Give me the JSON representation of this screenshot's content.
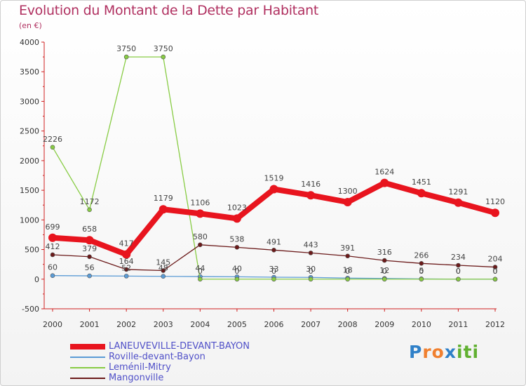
{
  "title": "Evolution du Montant de la Dette par Habitant",
  "unit": "(en €)",
  "logo": {
    "text": "Proxiti",
    "colors": [
      "#2f80c8",
      "#f08030",
      "#f08030",
      "#2f80c8",
      "#60b030",
      "#60b030",
      "#60b030"
    ]
  },
  "chart_data": {
    "type": "line",
    "x": [
      2000,
      2001,
      2002,
      2003,
      2004,
      2005,
      2006,
      2007,
      2008,
      2009,
      2010,
      2011,
      2012
    ],
    "ylim": [
      -500,
      4000
    ],
    "yticks": [
      -500,
      0,
      500,
      1000,
      1500,
      2000,
      2500,
      3000,
      3500,
      4000
    ],
    "grid": false,
    "legend_position": "bottom-left",
    "series": [
      {
        "name": "LANEUVEVILLE-DEVANT-BAYON",
        "color": "#e8141e",
        "width": 8,
        "marker": 6,
        "values": [
          699,
          658,
          417,
          1179,
          1106,
          1023,
          1519,
          1416,
          1300,
          1624,
          1451,
          1291,
          1120
        ],
        "labels": [
          "699",
          "658",
          "417",
          "1179",
          "1106",
          "1023",
          "1519",
          "1416",
          "1300",
          "1624",
          "1451",
          "1291",
          "1120"
        ]
      },
      {
        "name": "Roville-devant-Bayon",
        "color": "#5b9bd5",
        "width": 1.3,
        "marker": 3,
        "values": [
          60,
          56,
          52,
          48,
          44,
          40,
          33,
          30,
          18,
          12,
          5,
          0,
          0
        ],
        "labels": [
          "60",
          "56",
          "52",
          "48",
          "44",
          "40",
          "33",
          "30",
          "18",
          "12",
          "5",
          "0",
          "0"
        ]
      },
      {
        "name": "Leménil-Mitry",
        "color": "#88cc44",
        "width": 1.3,
        "marker": 3,
        "values": [
          2226,
          1172,
          3750,
          3750,
          0,
          0,
          0,
          0,
          0,
          0,
          0,
          0,
          0
        ],
        "labels": [
          "2226",
          "1172",
          "3750",
          "3750",
          "0",
          "0",
          "0",
          "0",
          "0",
          "0",
          "0",
          "0",
          "0"
        ]
      },
      {
        "name": "Mangonville",
        "color": "#6b1a1a",
        "width": 1.3,
        "marker": 3,
        "values": [
          412,
          379,
          164,
          145,
          580,
          538,
          491,
          443,
          391,
          316,
          266,
          234,
          204
        ],
        "labels": [
          "412",
          "379",
          "164",
          "145",
          "580",
          "538",
          "491",
          "443",
          "391",
          "316",
          "266",
          "234",
          "204"
        ]
      }
    ]
  }
}
